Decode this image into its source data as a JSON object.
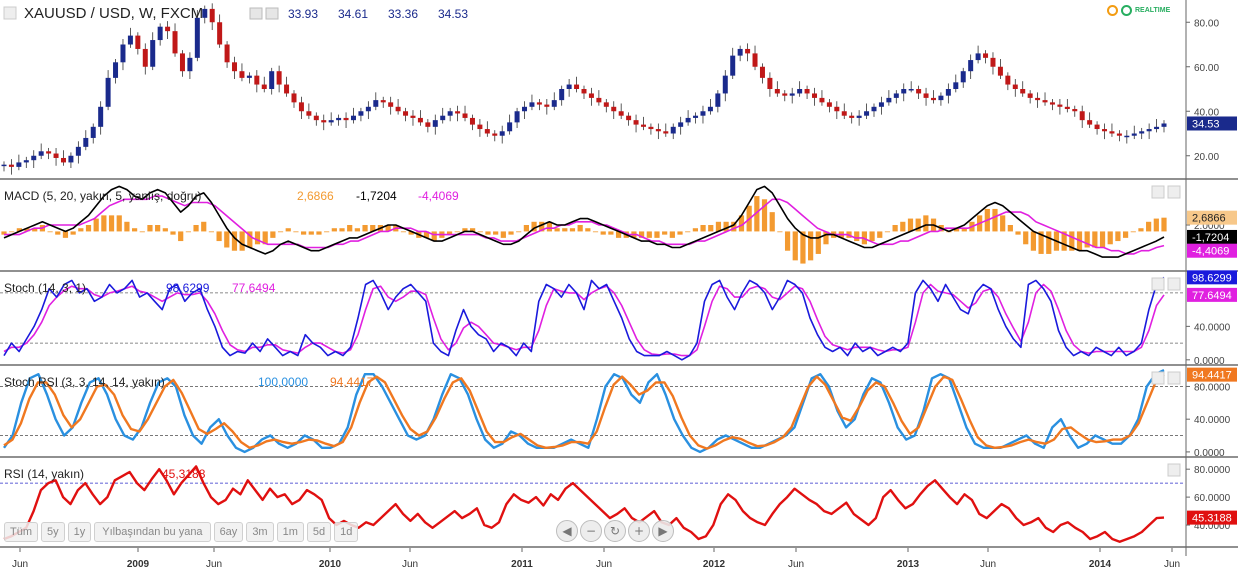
{
  "chart_data": [
    {
      "type": "candlestick",
      "title": "XAUUSD / USD, W, FXCM",
      "ohlc": {
        "open": "33.93",
        "high": "34.61",
        "low": "33.36",
        "close": "34.53"
      },
      "last_value_label": "34.53",
      "y_ticks": [
        "80.00",
        "60.00",
        "40.00",
        "20.00"
      ],
      "ylim": [
        10,
        90
      ],
      "colors": {
        "up": "#1a2a8c",
        "down": "#c01818",
        "wick": "#333333"
      },
      "close_series": [
        16,
        15,
        17,
        18,
        20,
        22,
        21,
        19,
        17,
        20,
        24,
        28,
        33,
        42,
        55,
        62,
        70,
        74,
        68,
        60,
        72,
        78,
        76,
        66,
        58,
        64,
        82,
        86,
        80,
        70,
        62,
        58,
        55,
        56,
        52,
        50,
        58,
        52,
        48,
        44,
        40,
        38,
        36,
        35,
        36,
        37,
        36,
        38,
        40,
        42,
        45,
        44,
        42,
        40,
        38,
        37,
        35,
        33,
        36,
        38,
        40,
        39,
        37,
        34,
        32,
        30,
        29,
        31,
        35,
        40,
        42,
        44,
        43,
        42,
        45,
        50,
        52,
        50,
        48,
        46,
        44,
        42,
        40,
        38,
        36,
        34,
        33,
        32,
        31,
        30,
        33,
        35,
        37,
        38,
        40,
        42,
        48,
        56,
        65,
        68,
        66,
        60,
        55,
        50,
        48,
        47,
        48,
        50,
        48,
        46,
        44,
        42,
        40,
        38,
        37,
        38,
        40,
        42,
        44,
        46,
        48,
        50,
        50,
        48,
        46,
        45,
        47,
        50,
        53,
        58,
        63,
        66,
        64,
        60,
        56,
        52,
        50,
        48,
        46,
        45,
        44,
        43,
        42,
        41,
        40,
        36,
        34,
        32,
        31,
        30,
        29,
        29,
        30,
        31,
        32,
        33,
        34.5
      ],
      "x_labels": [
        "Jun",
        "2009",
        "Jun",
        "2010",
        "Jun",
        "2011",
        "Jun",
        "2012",
        "Jun",
        "2013",
        "Jun",
        "2014",
        "Jun"
      ]
    },
    {
      "type": "line",
      "title": "MACD (5, 20, yakın, 5, yanlış, doğru)",
      "legend_values": {
        "histogram": "2,6866",
        "macd": "-1,7204",
        "signal": "-4,4069"
      },
      "value_labels": {
        "histogram": "2,6866",
        "macd": "-1,7204",
        "signal": "-4,4069"
      },
      "y_ticks": [
        "2.0000"
      ],
      "ylim": [
        -12,
        16
      ],
      "macd": [
        -2,
        -1,
        0,
        1,
        2,
        3,
        2,
        1,
        0,
        1,
        3,
        5,
        8,
        11,
        13,
        14,
        13,
        11,
        10,
        12,
        13,
        12,
        9,
        6,
        8,
        11,
        12,
        9,
        5,
        1,
        -2,
        -4,
        -5,
        -6,
        -7,
        -6,
        -4,
        -3,
        -4,
        -5,
        -6,
        -6,
        -5,
        -4,
        -3,
        -2,
        -2,
        -1,
        0,
        1,
        2,
        2,
        1,
        0,
        -1,
        -2,
        -3,
        -3,
        -2,
        -1,
        0,
        0,
        -1,
        -2,
        -3,
        -4,
        -4,
        -3,
        -1,
        1,
        2,
        3,
        2,
        2,
        3,
        4,
        4,
        3,
        2,
        1,
        0,
        -1,
        -2,
        -3,
        -3,
        -4,
        -4,
        -5,
        -5,
        -4,
        -3,
        -2,
        -1,
        0,
        1,
        2,
        5,
        9,
        13,
        14,
        12,
        8,
        4,
        1,
        -1,
        -2,
        -2,
        -1,
        -1,
        -2,
        -3,
        -4,
        -5,
        -5,
        -4,
        -3,
        -2,
        -1,
        0,
        1,
        2,
        2,
        1,
        0,
        1,
        2,
        4,
        6,
        8,
        9,
        8,
        6,
        4,
        2,
        0,
        -1,
        -2,
        -3,
        -4,
        -5,
        -6,
        -6,
        -7,
        -8,
        -8,
        -8,
        -7,
        -6,
        -5,
        -4,
        -3,
        -1.72
      ],
      "signal": [
        -1,
        -1,
        -1,
        0,
        1,
        1,
        2,
        2,
        2,
        2,
        2,
        3,
        4,
        6,
        8,
        9,
        10,
        10,
        10,
        10,
        11,
        11,
        10,
        9,
        8,
        9,
        9,
        9,
        8,
        6,
        4,
        2,
        0,
        -2,
        -3,
        -4,
        -4,
        -4,
        -4,
        -4,
        -5,
        -5,
        -5,
        -5,
        -4,
        -4,
        -3,
        -3,
        -2,
        -1,
        0,
        0,
        1,
        1,
        1,
        0,
        0,
        -1,
        -1,
        -1,
        -1,
        -1,
        -1,
        -1,
        -2,
        -2,
        -3,
        -3,
        -3,
        -2,
        -1,
        0,
        1,
        1,
        2,
        2,
        3,
        3,
        3,
        2,
        2,
        1,
        0,
        -1,
        -1,
        -2,
        -3,
        -3,
        -4,
        -4,
        -4,
        -4,
        -3,
        -3,
        -2,
        -1,
        0,
        1,
        2,
        4,
        6,
        8,
        10,
        10,
        9,
        7,
        5,
        3,
        1,
        0,
        -1,
        -1,
        -1,
        -2,
        -2,
        -3,
        -4,
        -4,
        -4,
        -3,
        -3,
        -2,
        -1,
        0,
        0,
        1,
        1,
        1,
        1,
        2,
        3,
        4,
        5,
        6,
        6,
        6,
        5,
        3,
        2,
        1,
        0,
        -1,
        -2,
        -3,
        -4,
        -5,
        -5,
        -6,
        -6,
        -7,
        -7,
        -6,
        -6,
        -5,
        -4.41
      ],
      "colors": {
        "macd": "#000000",
        "signal": "#e020e0",
        "histogram": "#f39a30"
      }
    },
    {
      "type": "line",
      "title": "Stoch (14, 3, 1)",
      "legend_values": {
        "k": "98,6299",
        "d": "77,6494"
      },
      "value_labels": {
        "k": "98.6299",
        "d": "77.6494"
      },
      "y_ticks": [
        "40.0000",
        "0.0000"
      ],
      "ylim": [
        -5,
        105
      ],
      "levels": [
        80,
        20
      ],
      "k": [
        5,
        20,
        10,
        25,
        40,
        60,
        85,
        75,
        90,
        95,
        80,
        85,
        70,
        75,
        90,
        80,
        85,
        95,
        75,
        80,
        70,
        60,
        85,
        90,
        70,
        80,
        85,
        60,
        40,
        15,
        5,
        10,
        8,
        20,
        10,
        25,
        15,
        5,
        10,
        5,
        30,
        20,
        15,
        5,
        10,
        5,
        15,
        50,
        90,
        95,
        80,
        60,
        75,
        85,
        90,
        80,
        70,
        20,
        10,
        5,
        35,
        60,
        40,
        30,
        25,
        10,
        20,
        15,
        5,
        20,
        10,
        70,
        90,
        85,
        75,
        90,
        80,
        60,
        95,
        85,
        90,
        70,
        50,
        25,
        10,
        5,
        5,
        5,
        10,
        5,
        0,
        5,
        20,
        70,
        90,
        95,
        75,
        60,
        80,
        95,
        90,
        80,
        60,
        75,
        95,
        90,
        80,
        50,
        30,
        15,
        10,
        15,
        5,
        20,
        10,
        15,
        5,
        10,
        15,
        10,
        20,
        80,
        95,
        85,
        70,
        90,
        75,
        60,
        55,
        80,
        90,
        85,
        60,
        40,
        25,
        15,
        90,
        95,
        85,
        70,
        35,
        15,
        5,
        10,
        5,
        15,
        10,
        5,
        15,
        5,
        10,
        20,
        60,
        90,
        98.63
      ],
      "d": [
        10,
        15,
        15,
        20,
        30,
        45,
        65,
        75,
        83,
        88,
        85,
        85,
        78,
        75,
        80,
        82,
        85,
        88,
        82,
        80,
        75,
        70,
        75,
        80,
        78,
        78,
        80,
        70,
        55,
        35,
        18,
        12,
        10,
        15,
        15,
        18,
        18,
        12,
        10,
        8,
        15,
        20,
        20,
        15,
        10,
        8,
        12,
        30,
        60,
        85,
        88,
        75,
        70,
        75,
        82,
        82,
        78,
        50,
        25,
        12,
        20,
        38,
        45,
        40,
        30,
        20,
        18,
        15,
        12,
        15,
        15,
        35,
        65,
        85,
        82,
        80,
        80,
        72,
        80,
        85,
        88,
        80,
        65,
        45,
        25,
        12,
        7,
        6,
        7,
        7,
        5,
        5,
        12,
        40,
        70,
        88,
        85,
        75,
        75,
        85,
        88,
        85,
        75,
        72,
        80,
        88,
        85,
        70,
        48,
        28,
        18,
        15,
        12,
        15,
        15,
        15,
        12,
        10,
        12,
        12,
        15,
        45,
        80,
        90,
        82,
        80,
        78,
        70,
        62,
        68,
        82,
        85,
        75,
        55,
        38,
        22,
        45,
        80,
        90,
        82,
        60,
        35,
        18,
        10,
        8,
        10,
        10,
        10,
        10,
        10,
        10,
        15,
        35,
        65,
        77.65
      ],
      "colors": {
        "k": "#1a1adc",
        "d": "#e020e0"
      }
    },
    {
      "type": "line",
      "title": "Stoch RSI (3, 3, 14, 14, yakın)",
      "legend_values": {
        "k": "100,0000",
        "d": "94,4417"
      },
      "value_labels": {
        "d": "94.4417"
      },
      "y_ticks": [
        "80.0000",
        "40.0000",
        "0.0000"
      ],
      "ylim": [
        -5,
        105
      ],
      "levels": [
        80,
        20
      ],
      "k": [
        5,
        20,
        60,
        90,
        95,
        70,
        40,
        20,
        30,
        60,
        85,
        90,
        70,
        40,
        20,
        15,
        30,
        60,
        85,
        90,
        80,
        45,
        20,
        10,
        30,
        40,
        20,
        5,
        0,
        5,
        15,
        20,
        10,
        5,
        10,
        20,
        15,
        5,
        5,
        10,
        30,
        70,
        95,
        95,
        80,
        60,
        40,
        20,
        15,
        20,
        40,
        70,
        95,
        90,
        70,
        40,
        15,
        5,
        10,
        25,
        20,
        10,
        5,
        5,
        5,
        10,
        15,
        10,
        5,
        40,
        80,
        95,
        90,
        70,
        60,
        85,
        95,
        70,
        40,
        20,
        5,
        0,
        5,
        15,
        20,
        15,
        10,
        5,
        5,
        10,
        15,
        20,
        30,
        60,
        90,
        95,
        80,
        50,
        30,
        40,
        70,
        90,
        85,
        60,
        30,
        15,
        20,
        50,
        90,
        95,
        90,
        60,
        30,
        10,
        5,
        5,
        5,
        10,
        15,
        20,
        10,
        5,
        30,
        40,
        20,
        5,
        10,
        20,
        15,
        10,
        10,
        20,
        40,
        80,
        95,
        100
      ],
      "d": [
        8,
        15,
        35,
        65,
        85,
        85,
        70,
        45,
        30,
        40,
        60,
        80,
        82,
        70,
        45,
        28,
        25,
        40,
        60,
        80,
        88,
        72,
        50,
        28,
        22,
        28,
        35,
        25,
        12,
        5,
        8,
        13,
        15,
        12,
        10,
        12,
        15,
        14,
        10,
        7,
        12,
        30,
        60,
        85,
        92,
        85,
        65,
        45,
        28,
        20,
        25,
        42,
        65,
        85,
        90,
        75,
        50,
        25,
        12,
        12,
        18,
        22,
        15,
        8,
        5,
        6,
        8,
        12,
        12,
        10,
        25,
        55,
        82,
        92,
        82,
        70,
        75,
        85,
        85,
        68,
        42,
        20,
        8,
        4,
        8,
        14,
        18,
        16,
        11,
        7,
        8,
        12,
        18,
        30,
        55,
        80,
        92,
        82,
        62,
        42,
        38,
        55,
        75,
        85,
        80,
        60,
        38,
        22,
        30,
        55,
        80,
        92,
        88,
        65,
        40,
        18,
        8,
        5,
        6,
        8,
        12,
        15,
        12,
        10,
        15,
        28,
        30,
        22,
        15,
        12,
        13,
        15,
        15,
        20,
        35,
        60,
        85,
        94.44
      ],
      "colors": {
        "k": "#2a90e0",
        "d": "#f07820"
      }
    },
    {
      "type": "line",
      "title": "RSI (14, yakın)",
      "legend_values": {
        "rsi": "45,3188"
      },
      "value_labels": {
        "rsi": "45.3188"
      },
      "y_ticks": [
        "80.0000",
        "60.0000",
        "40.0000"
      ],
      "ylim": [
        25,
        88
      ],
      "levels": [
        70
      ],
      "rsi": [
        30,
        32,
        35,
        38,
        50,
        65,
        70,
        72,
        60,
        55,
        65,
        70,
        62,
        55,
        60,
        72,
        75,
        78,
        70,
        65,
        73,
        80,
        72,
        62,
        70,
        76,
        82,
        70,
        60,
        55,
        58,
        66,
        62,
        72,
        65,
        58,
        66,
        60,
        62,
        55,
        58,
        65,
        62,
        58,
        45,
        40,
        43,
        40,
        38,
        42,
        40,
        45,
        50,
        55,
        48,
        43,
        48,
        42,
        38,
        42,
        46,
        50,
        45,
        48,
        52,
        40,
        38,
        42,
        55,
        62,
        58,
        56,
        60,
        54,
        62,
        58,
        66,
        70,
        65,
        60,
        55,
        50,
        45,
        48,
        52,
        45,
        42,
        46,
        50,
        42,
        40,
        45,
        38,
        35,
        30,
        32,
        40,
        55,
        62,
        58,
        50,
        45,
        42,
        40,
        48,
        55,
        60,
        66,
        62,
        58,
        55,
        50,
        48,
        52,
        56,
        48,
        44,
        40,
        45,
        60,
        65,
        58,
        52,
        55,
        62,
        68,
        72,
        66,
        60,
        55,
        62,
        58,
        48,
        45,
        50,
        55,
        52,
        45,
        40,
        42,
        45,
        38,
        35,
        40,
        42,
        38,
        35,
        30,
        32,
        35,
        30,
        28,
        30,
        32,
        35,
        40,
        45,
        45.32
      ],
      "colors": {
        "rsi": "#e01010",
        "level": "#2a2ac8"
      }
    }
  ],
  "toolbar": {
    "range_buttons": [
      "Tüm",
      "5y",
      "1y",
      "Yılbaşından bu yana",
      "6ay",
      "3m",
      "1m",
      "5d",
      "1d"
    ]
  },
  "logo": {
    "realtime_label": "REALTIME"
  }
}
